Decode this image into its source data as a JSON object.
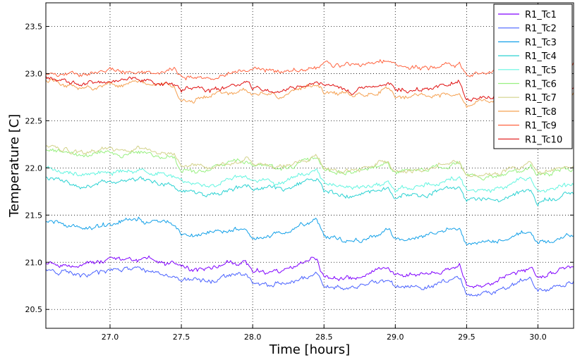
{
  "chart_data": {
    "type": "line",
    "title": "",
    "xlabel": "Time [hours]",
    "ylabel": "Temperature [C]",
    "xlim": [
      26.55,
      30.25
    ],
    "ylim": [
      20.3,
      23.75
    ],
    "xticks": [
      27.0,
      27.5,
      28.0,
      28.5,
      29.0,
      29.5,
      30.0
    ],
    "xtick_labels": [
      "27.0",
      "27.5",
      "28.0",
      "28.5",
      "29.0",
      "29.5",
      "30.0"
    ],
    "yticks": [
      20.5,
      21.0,
      21.5,
      22.0,
      22.5,
      23.0,
      23.5
    ],
    "ytick_labels": [
      "20.5",
      "21.0",
      "21.5",
      "22.0",
      "22.5",
      "23.0",
      "23.5"
    ],
    "grid": true,
    "legend_position": "top-right",
    "series": [
      {
        "name": "R1_Tc1",
        "color": "#8000ff",
        "x": [
          26.55,
          26.8,
          27.0,
          27.2,
          27.45,
          27.5,
          27.7,
          27.95,
          28.0,
          28.2,
          28.45,
          28.5,
          28.7,
          28.95,
          29.0,
          29.2,
          29.45,
          29.5,
          29.7,
          29.95,
          30.0,
          30.25
        ],
        "y": [
          21.0,
          20.98,
          21.02,
          21.03,
          20.97,
          20.92,
          20.93,
          21.02,
          20.88,
          20.9,
          21.05,
          20.83,
          20.82,
          20.95,
          20.85,
          20.88,
          20.98,
          20.75,
          20.78,
          20.93,
          20.82,
          20.95
        ]
      },
      {
        "name": "R1_Tc2",
        "color": "#4a62ff",
        "x": [
          26.55,
          26.8,
          27.0,
          27.2,
          27.45,
          27.5,
          27.7,
          27.95,
          28.0,
          28.2,
          28.45,
          28.5,
          28.7,
          28.95,
          29.0,
          29.2,
          29.45,
          29.5,
          29.7,
          29.95,
          30.0,
          30.25
        ],
        "y": [
          20.93,
          20.85,
          20.9,
          20.92,
          20.87,
          20.82,
          20.8,
          20.9,
          20.78,
          20.78,
          20.9,
          20.73,
          20.72,
          20.82,
          20.73,
          20.75,
          20.85,
          20.65,
          20.68,
          20.82,
          20.68,
          20.8
        ]
      },
      {
        "name": "R1_Tc3",
        "color": "#12a0e8",
        "x": [
          26.55,
          26.8,
          27.0,
          27.2,
          27.45,
          27.5,
          27.7,
          27.95,
          28.0,
          28.2,
          28.45,
          28.5,
          28.7,
          28.95,
          29.0,
          29.2,
          29.45,
          29.5,
          29.7,
          29.95,
          30.0,
          30.25
        ],
        "y": [
          21.45,
          21.35,
          21.4,
          21.45,
          21.42,
          21.3,
          21.28,
          21.35,
          21.25,
          21.3,
          21.45,
          21.28,
          21.22,
          21.32,
          21.25,
          21.28,
          21.38,
          21.2,
          21.22,
          21.32,
          21.2,
          21.28
        ]
      },
      {
        "name": "R1_Tc4",
        "color": "#2bd2d2",
        "x": [
          26.55,
          26.8,
          27.0,
          27.2,
          27.45,
          27.5,
          27.7,
          27.95,
          28.0,
          28.2,
          28.45,
          28.5,
          28.7,
          28.95,
          29.0,
          29.2,
          29.45,
          29.5,
          29.7,
          29.95,
          30.0,
          30.25
        ],
        "y": [
          21.92,
          21.8,
          21.85,
          21.88,
          21.82,
          21.75,
          21.72,
          21.82,
          21.78,
          21.75,
          21.88,
          21.75,
          21.68,
          21.78,
          21.7,
          21.72,
          21.82,
          21.65,
          21.68,
          21.78,
          21.65,
          21.72
        ]
      },
      {
        "name": "R1_Tc5",
        "color": "#62f5e0",
        "x": [
          26.55,
          26.8,
          27.0,
          27.2,
          27.45,
          27.5,
          27.7,
          27.95,
          28.0,
          28.2,
          28.45,
          28.5,
          28.7,
          28.95,
          29.0,
          29.2,
          29.45,
          29.5,
          29.7,
          29.95,
          30.0,
          30.25
        ],
        "y": [
          22.02,
          21.92,
          21.95,
          21.98,
          21.92,
          21.85,
          21.82,
          21.92,
          21.88,
          21.85,
          21.98,
          21.85,
          21.78,
          21.88,
          21.8,
          21.82,
          21.9,
          21.75,
          21.78,
          21.88,
          21.75,
          21.82
        ]
      },
      {
        "name": "R1_Tc6",
        "color": "#98f080",
        "x": [
          26.55,
          26.8,
          27.0,
          27.2,
          27.45,
          27.5,
          27.7,
          27.95,
          28.0,
          28.2,
          28.45,
          28.5,
          28.7,
          28.95,
          29.0,
          29.2,
          29.45,
          29.5,
          29.7,
          29.95,
          30.0,
          30.25
        ],
        "y": [
          22.2,
          22.12,
          22.15,
          22.17,
          22.12,
          22.0,
          21.98,
          22.08,
          22.02,
          22.0,
          22.1,
          21.98,
          21.95,
          22.05,
          21.95,
          21.97,
          22.05,
          21.9,
          21.92,
          22.02,
          21.92,
          21.98
        ]
      },
      {
        "name": "R1_Tc7",
        "color": "#d2d28a",
        "x": [
          26.55,
          26.8,
          27.0,
          27.2,
          27.45,
          27.5,
          27.7,
          27.95,
          28.0,
          28.2,
          28.45,
          28.5,
          28.7,
          28.95,
          29.0,
          29.2,
          29.45,
          29.5,
          29.7,
          29.95,
          30.0,
          30.25
        ],
        "y": [
          22.25,
          22.15,
          22.18,
          22.2,
          22.15,
          22.02,
          22.0,
          22.1,
          22.05,
          22.02,
          22.12,
          22.0,
          21.97,
          22.07,
          21.97,
          21.99,
          22.07,
          21.92,
          21.95,
          22.05,
          21.95,
          22.02
        ]
      },
      {
        "name": "R1_Tc8",
        "color": "#f5a050",
        "x": [
          26.55,
          26.8,
          27.0,
          27.2,
          27.45,
          27.5,
          27.7,
          27.95,
          28.0,
          28.2,
          28.45,
          28.5,
          28.7,
          28.95,
          29.0,
          29.2,
          29.45,
          29.5,
          29.7,
          29.95,
          30.0,
          30.25
        ],
        "y": [
          22.95,
          22.85,
          22.88,
          22.92,
          22.85,
          22.72,
          22.75,
          22.85,
          22.8,
          22.75,
          22.9,
          22.82,
          22.75,
          22.85,
          22.75,
          22.78,
          22.8,
          22.68,
          22.72,
          22.85,
          22.78,
          22.8
        ]
      },
      {
        "name": "R1_Tc9",
        "color": "#ff6440",
        "x": [
          26.55,
          26.8,
          27.0,
          27.2,
          27.45,
          27.5,
          27.7,
          27.95,
          28.0,
          28.2,
          28.45,
          28.5,
          28.7,
          28.95,
          29.0,
          29.2,
          29.45,
          29.5,
          29.7,
          29.95,
          30.0,
          30.25
        ],
        "y": [
          23.02,
          23.0,
          23.02,
          23.0,
          23.05,
          22.95,
          22.95,
          23.05,
          23.08,
          23.0,
          23.05,
          23.1,
          23.08,
          23.12,
          23.08,
          23.05,
          23.1,
          22.98,
          23.02,
          23.1,
          23.05,
          23.12
        ]
      },
      {
        "name": "R1_Tc10",
        "color": "#e01010",
        "x": [
          26.55,
          26.8,
          27.0,
          27.2,
          27.45,
          27.5,
          27.7,
          27.95,
          28.0,
          28.2,
          28.45,
          28.5,
          28.7,
          28.95,
          29.0,
          29.2,
          29.45,
          29.5,
          29.7,
          29.95,
          30.0,
          30.25
        ],
        "y": [
          22.98,
          22.88,
          22.9,
          22.93,
          22.88,
          22.82,
          22.82,
          22.9,
          22.85,
          22.82,
          22.92,
          22.85,
          22.82,
          22.9,
          22.82,
          22.84,
          22.9,
          22.72,
          22.75,
          22.88,
          22.8,
          22.85
        ]
      }
    ]
  }
}
